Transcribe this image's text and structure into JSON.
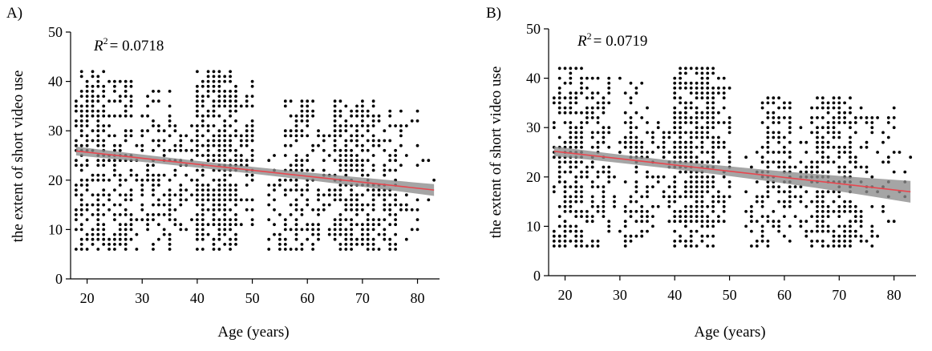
{
  "colors": {
    "points": "#000000",
    "fit_line": "#e8474f",
    "ci_band": "#8c8c8c"
  },
  "chart_data": [
    {
      "type": "scatter",
      "panel_label": "A)",
      "annotation": {
        "r2_symbol": "R",
        "r2_sup": "2",
        "r2_value": "= 0.0718"
      },
      "xlabel": "Age (years)",
      "ylabel": "the extent of short video use",
      "xlim": [
        17,
        84
      ],
      "ylim": [
        0,
        50
      ],
      "xticks": [
        20,
        30,
        40,
        50,
        60,
        70,
        80
      ],
      "yticks": [
        0,
        10,
        20,
        30,
        40,
        50
      ],
      "fit": {
        "x": [
          18,
          83
        ],
        "y": [
          25.9,
          18.0
        ],
        "ci_lower": [
          25.0,
          16.8
        ],
        "ci_upper": [
          26.8,
          19.2
        ]
      },
      "grid": false
    },
    {
      "type": "scatter",
      "panel_label": "B)",
      "annotation": {
        "r2_symbol": "R",
        "r2_sup": "2",
        "r2_value": "= 0.0719"
      },
      "xlabel": "Age (years)",
      "ylabel": "the extent of short video use",
      "xlim": [
        17,
        84
      ],
      "ylim": [
        0,
        50
      ],
      "xticks": [
        20,
        30,
        40,
        50,
        60,
        70,
        80
      ],
      "yticks": [
        0,
        10,
        20,
        30,
        40,
        50
      ],
      "fit": {
        "x": [
          18,
          83
        ],
        "y": [
          25.2,
          17.0
        ],
        "ci_lower": [
          24.2,
          14.8
        ],
        "ci_upper": [
          26.2,
          19.2
        ]
      },
      "grid": false
    }
  ]
}
